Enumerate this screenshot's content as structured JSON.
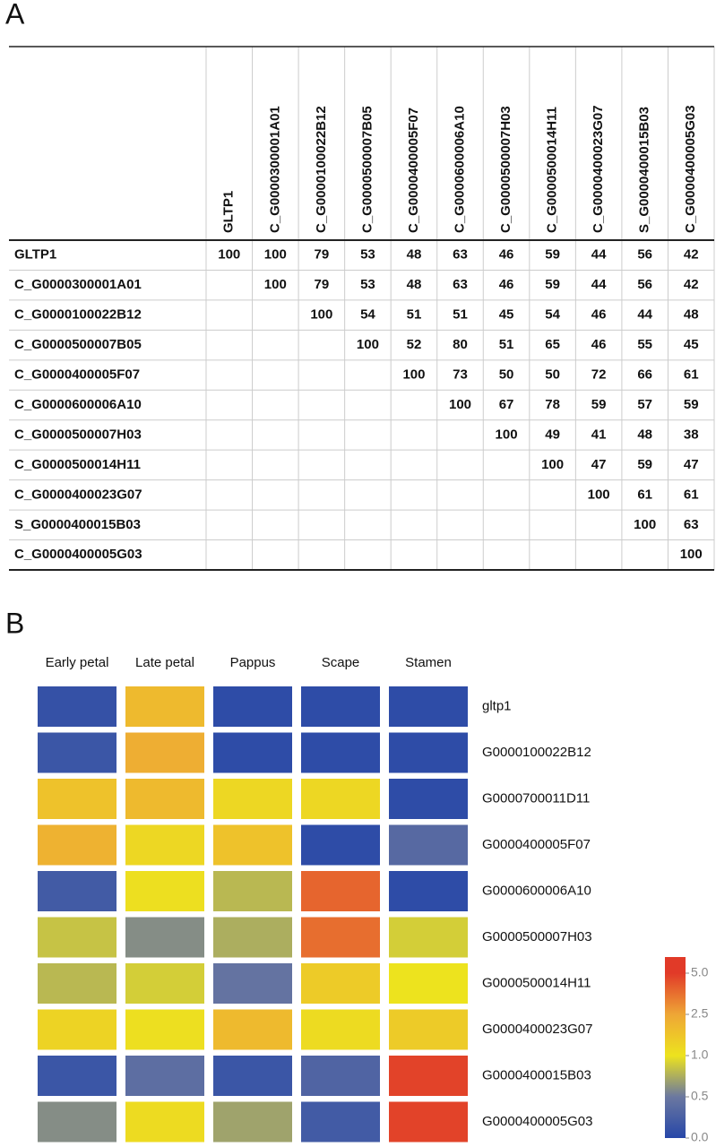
{
  "panel_a": {
    "label": "A",
    "table": {
      "columns": [
        "GLTP1",
        "C_G0000300001A01",
        "C_G0000100022B12",
        "C_G0000500007B05",
        "C_G0000400005F07",
        "C_G0000600006A10",
        "C_G0000500007H03",
        "C_G0000500014H11",
        "C_G0000400023G07",
        "S_G0000400015B03",
        "C_G0000400005G03"
      ],
      "rows": [
        {
          "label": "GLTP1",
          "values": [
            100,
            100,
            79,
            53,
            48,
            63,
            46,
            59,
            44,
            56,
            42
          ]
        },
        {
          "label": "C_G0000300001A01",
          "values": [
            null,
            100,
            79,
            53,
            48,
            63,
            46,
            59,
            44,
            56,
            42
          ]
        },
        {
          "label": "C_G0000100022B12",
          "values": [
            null,
            null,
            100,
            54,
            51,
            51,
            45,
            54,
            46,
            44,
            48
          ]
        },
        {
          "label": "C_G0000500007B05",
          "values": [
            null,
            null,
            null,
            100,
            52,
            80,
            51,
            65,
            46,
            55,
            45
          ]
        },
        {
          "label": "C_G0000400005F07",
          "values": [
            null,
            null,
            null,
            null,
            100,
            73,
            50,
            50,
            72,
            66,
            61
          ]
        },
        {
          "label": "C_G0000600006A10",
          "values": [
            null,
            null,
            null,
            null,
            null,
            100,
            67,
            78,
            59,
            57,
            59
          ]
        },
        {
          "label": "C_G0000500007H03",
          "values": [
            null,
            null,
            null,
            null,
            null,
            null,
            100,
            49,
            41,
            48,
            38
          ]
        },
        {
          "label": "C_G0000500014H11",
          "values": [
            null,
            null,
            null,
            null,
            null,
            null,
            null,
            100,
            47,
            59,
            47
          ]
        },
        {
          "label": "C_G0000400023G07",
          "values": [
            null,
            null,
            null,
            null,
            null,
            null,
            null,
            null,
            100,
            61,
            61
          ]
        },
        {
          "label": "S_G0000400015B03",
          "values": [
            null,
            null,
            null,
            null,
            null,
            null,
            null,
            null,
            null,
            100,
            63
          ]
        },
        {
          "label": "C_G0000400005G03",
          "values": [
            null,
            null,
            null,
            null,
            null,
            null,
            null,
            null,
            null,
            null,
            100
          ]
        }
      ]
    }
  },
  "chart_data": {
    "type": "heatmap",
    "panel_label": "B",
    "x_categories": [
      "Early petal",
      "Late petal",
      "Pappus",
      "Scape",
      "Stamen"
    ],
    "y_categories": [
      "gltp1",
      "G0000100022B12",
      "G0000700011D11",
      "G0000400005F07",
      "G0000600006A10",
      "G0000500007H03",
      "G0000500014H11",
      "G0000400023G07",
      "G0000400015B03",
      "G0000400005G03"
    ],
    "values": [
      [
        0.1,
        2.0,
        0.05,
        0.05,
        0.05
      ],
      [
        0.15,
        2.3,
        0.05,
        0.05,
        0.05
      ],
      [
        1.8,
        2.0,
        1.3,
        1.3,
        0.05
      ],
      [
        2.2,
        1.3,
        1.8,
        0.05,
        0.35
      ],
      [
        0.2,
        1.1,
        0.8,
        4.0,
        0.05
      ],
      [
        0.85,
        0.6,
        0.75,
        3.8,
        0.9
      ],
      [
        0.8,
        0.9,
        0.45,
        1.6,
        1.0
      ],
      [
        1.4,
        1.1,
        2.0,
        1.2,
        1.6
      ],
      [
        0.15,
        0.4,
        0.15,
        0.3,
        4.8
      ],
      [
        0.6,
        1.2,
        0.7,
        0.2,
        4.8
      ]
    ],
    "colorbar": {
      "ticks": [
        {
          "value": 0,
          "label": "0.0"
        },
        0.5,
        {
          "value": 1,
          "label": "1.0"
        },
        2.5,
        {
          "value": 5,
          "label": "5.0"
        }
      ],
      "colors": [
        "#2747a8",
        "#6b78a0",
        "#ede31e",
        "#eea636",
        "#e13a28"
      ]
    }
  }
}
